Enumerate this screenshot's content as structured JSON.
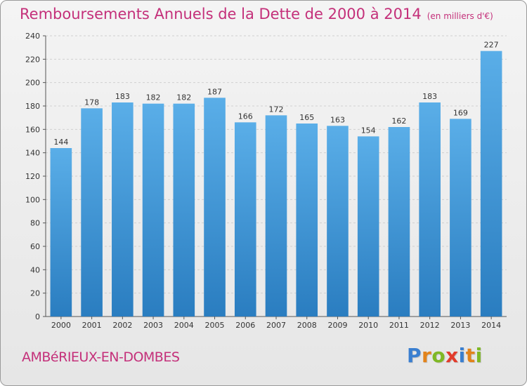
{
  "header": {
    "title": "Remboursements Annuels de la Dette de 2000 à 2014",
    "unit": "(en milliers d'€)"
  },
  "footer": {
    "commune": "AMBéRIEUX-EN-DOMBES",
    "brand": "Proxiti",
    "brand_colors": [
      "#3a7fd0",
      "#e2831b",
      "#7fb825",
      "#e23c2c",
      "#3a7fd0",
      "#e2831b",
      "#7fb825"
    ]
  },
  "colors": {
    "title": "#c4307a",
    "bar_light": "#5aaee8",
    "bar_dark": "#2a7dc0",
    "grid": "#cfcfcf"
  },
  "chart_data": {
    "type": "bar",
    "title": "Remboursements Annuels de la Dette de 2000 à 2014",
    "categories": [
      "2000",
      "2001",
      "2002",
      "2003",
      "2004",
      "2005",
      "2006",
      "2007",
      "2008",
      "2009",
      "2010",
      "2011",
      "2012",
      "2013",
      "2014"
    ],
    "values": [
      144,
      178,
      183,
      182,
      182,
      187,
      166,
      172,
      165,
      163,
      154,
      162,
      183,
      169,
      227
    ],
    "ylim": [
      0,
      240
    ],
    "yticks": [
      0,
      20,
      40,
      60,
      80,
      100,
      120,
      140,
      160,
      180,
      200,
      220,
      240
    ],
    "grid": true,
    "data_labels": true
  }
}
